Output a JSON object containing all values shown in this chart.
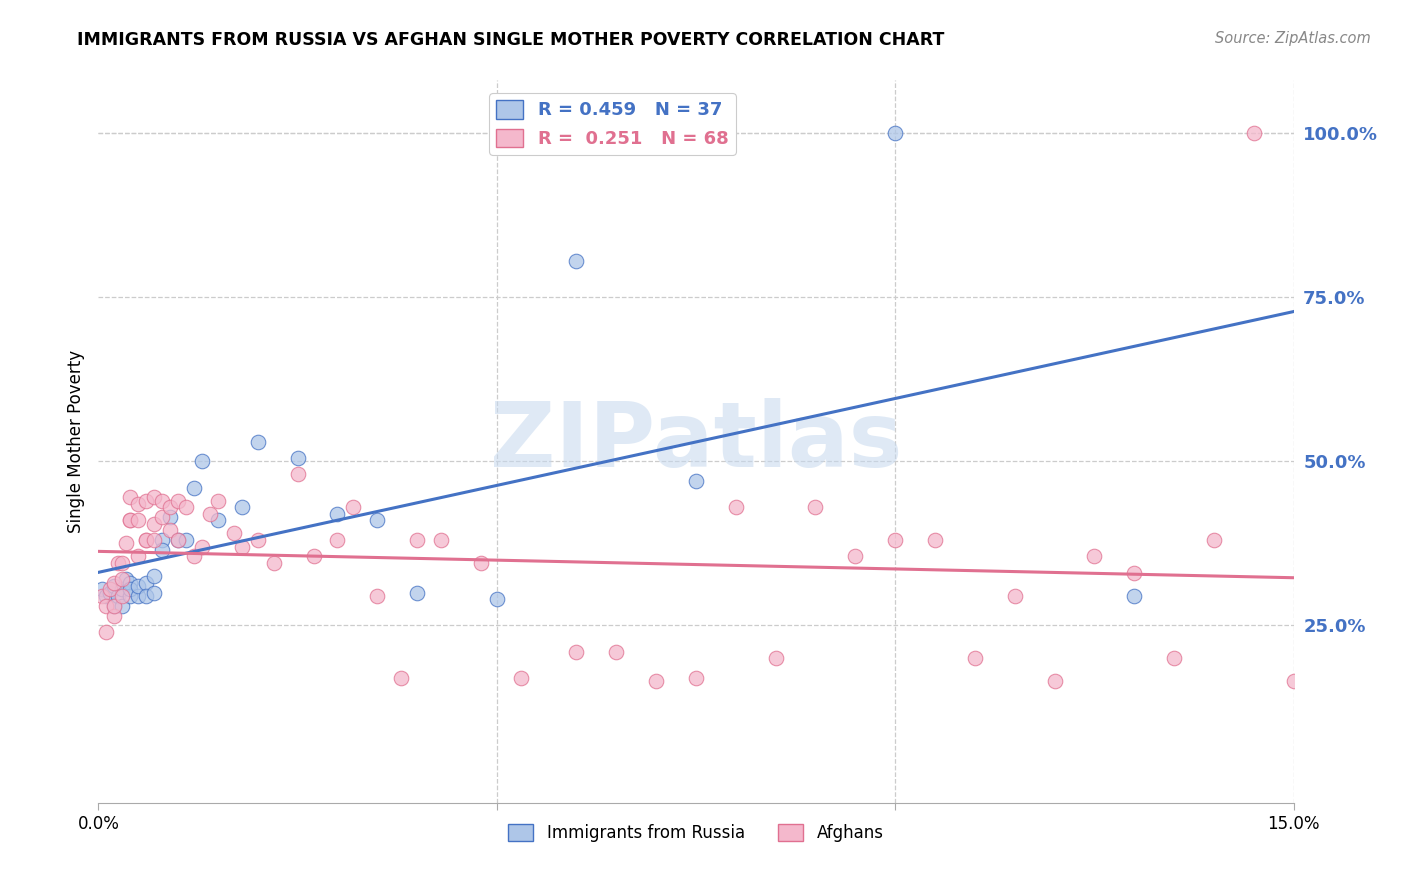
{
  "title": "IMMIGRANTS FROM RUSSIA VS AFGHAN SINGLE MOTHER POVERTY CORRELATION CHART",
  "source": "Source: ZipAtlas.com",
  "ylabel": "Single Mother Poverty",
  "ytick_vals": [
    0.25,
    0.5,
    0.75,
    1.0
  ],
  "ytick_labels": [
    "25.0%",
    "50.0%",
    "75.0%",
    "100.0%"
  ],
  "xlim": [
    0.0,
    0.15
  ],
  "ylim": [
    -0.02,
    1.08
  ],
  "watermark": "ZIPatlas",
  "blue_color": "#4472c4",
  "pink_color": "#e07090",
  "blue_fill": "#aec6e8",
  "pink_fill": "#f4b8cc",
  "blue_line": "#4472c4",
  "pink_line": "#e07090",
  "legend1_label1": "R = 0.459   N = 37",
  "legend1_label2": "R =  0.251   N = 68",
  "legend2_label1": "Immigrants from Russia",
  "legend2_label2": "Afghans",
  "russia_x": [
    0.0005,
    0.001,
    0.0015,
    0.002,
    0.002,
    0.0025,
    0.003,
    0.003,
    0.0035,
    0.004,
    0.004,
    0.004,
    0.005,
    0.005,
    0.006,
    0.006,
    0.007,
    0.007,
    0.008,
    0.008,
    0.009,
    0.01,
    0.011,
    0.012,
    0.013,
    0.015,
    0.018,
    0.02,
    0.025,
    0.03,
    0.035,
    0.04,
    0.05,
    0.06,
    0.075,
    0.1,
    0.13
  ],
  "russia_y": [
    0.305,
    0.295,
    0.3,
    0.31,
    0.28,
    0.295,
    0.305,
    0.28,
    0.32,
    0.315,
    0.295,
    0.305,
    0.295,
    0.31,
    0.315,
    0.295,
    0.325,
    0.3,
    0.38,
    0.365,
    0.415,
    0.38,
    0.38,
    0.46,
    0.5,
    0.41,
    0.43,
    0.53,
    0.505,
    0.42,
    0.41,
    0.3,
    0.29,
    0.805,
    0.47,
    1.0,
    0.295
  ],
  "afghan_x": [
    0.0005,
    0.001,
    0.001,
    0.0015,
    0.002,
    0.002,
    0.002,
    0.0025,
    0.003,
    0.003,
    0.003,
    0.0035,
    0.004,
    0.004,
    0.004,
    0.005,
    0.005,
    0.005,
    0.006,
    0.006,
    0.006,
    0.007,
    0.007,
    0.007,
    0.008,
    0.008,
    0.009,
    0.009,
    0.01,
    0.01,
    0.011,
    0.012,
    0.013,
    0.014,
    0.015,
    0.017,
    0.018,
    0.02,
    0.022,
    0.025,
    0.027,
    0.03,
    0.032,
    0.035,
    0.038,
    0.04,
    0.043,
    0.048,
    0.053,
    0.06,
    0.065,
    0.07,
    0.075,
    0.08,
    0.085,
    0.09,
    0.095,
    0.1,
    0.105,
    0.11,
    0.115,
    0.12,
    0.125,
    0.13,
    0.135,
    0.14,
    0.145,
    0.15
  ],
  "afghan_y": [
    0.295,
    0.24,
    0.28,
    0.305,
    0.265,
    0.315,
    0.28,
    0.345,
    0.295,
    0.345,
    0.32,
    0.375,
    0.41,
    0.445,
    0.41,
    0.355,
    0.41,
    0.435,
    0.38,
    0.38,
    0.44,
    0.445,
    0.405,
    0.38,
    0.415,
    0.44,
    0.395,
    0.43,
    0.38,
    0.44,
    0.43,
    0.355,
    0.37,
    0.42,
    0.44,
    0.39,
    0.37,
    0.38,
    0.345,
    0.48,
    0.355,
    0.38,
    0.43,
    0.295,
    0.17,
    0.38,
    0.38,
    0.345,
    0.17,
    0.21,
    0.21,
    0.165,
    0.17,
    0.43,
    0.2,
    0.43,
    0.355,
    0.38,
    0.38,
    0.2,
    0.295,
    0.165,
    0.355,
    0.33,
    0.2,
    0.38,
    1.0,
    0.165
  ]
}
